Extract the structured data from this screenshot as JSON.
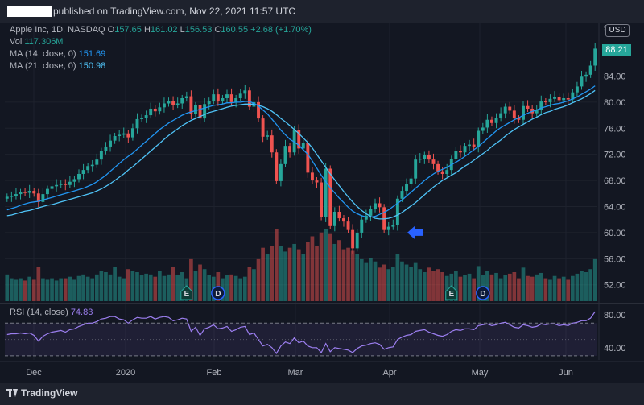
{
  "header": {
    "published_text": "published on TradingView.com, Nov 22, 2021 11:57 UTC"
  },
  "legend": {
    "symbol": "Apple Inc, 1D, NASDAQ",
    "open_label": "O",
    "open_value": "157.65",
    "high_label": "H",
    "high_value": "161.02",
    "low_label": "L",
    "low_value": "156.53",
    "close_label": "C",
    "close_value": "160.55",
    "change": "+2.68 (+1.70%)",
    "vol_label": "Vol",
    "vol_value": "117.306M",
    "ma14_label": "MA (14, close, 0)",
    "ma14_value": "151.69",
    "ma21_label": "MA (21, close, 0)",
    "ma21_value": "150.98",
    "rsi_label": "RSI (14, close)",
    "rsi_value": "74.83"
  },
  "price_axis": {
    "currency": "USD",
    "last_price_label": "88.21",
    "top_partial_label": "92"
  },
  "footer": {
    "brand": "TradingView"
  },
  "colors": {
    "up": "#26a69a",
    "down": "#ef5350",
    "ma14": "#2196f3",
    "ma21": "#4fc3f7",
    "rsi": "#9c7ff0",
    "arrow": "#2962ff"
  },
  "chart_data": [
    {
      "type": "candlestick",
      "title": "Apple Inc, 1D, NASDAQ",
      "y_ticks": [
        52,
        56,
        60,
        64,
        68,
        72,
        76,
        80,
        84
      ],
      "y_tick_labels": [
        "52.00",
        "56.00",
        "60.00",
        "64.00",
        "68.00",
        "72.00",
        "76.00",
        "80.00",
        "84.00"
      ],
      "ylim": [
        49.5,
        92.2
      ],
      "x_tick_labels": [
        "Dec",
        "2020",
        "Feb",
        "Mar",
        "Apr",
        "May",
        "Jun"
      ],
      "close": [
        65.5,
        65.6,
        65.9,
        66.2,
        66.1,
        66.4,
        66.0,
        64.7,
        65.9,
        66.7,
        67.1,
        67.3,
        67.5,
        67.3,
        67.8,
        68.2,
        69.0,
        69.6,
        70.2,
        70.4,
        71.2,
        72.5,
        73.2,
        74.1,
        74.8,
        75.0,
        75.2,
        74.6,
        76.0,
        77.4,
        77.6,
        78.0,
        79.0,
        78.6,
        79.2,
        79.8,
        80.2,
        79.6,
        79.8,
        80.6,
        80.9,
        78.2,
        79.5,
        77.5,
        79.7,
        80.2,
        81.2,
        80.2,
        80.6,
        81.2,
        80.0,
        80.6,
        81.3,
        81.8,
        79.3,
        80.0,
        77.5,
        74.7,
        74.9,
        72.3,
        67.9,
        70.5,
        73.3,
        72.3,
        75.7,
        72.9,
        73.7,
        69.2,
        68.0,
        67.7,
        62.4,
        69.8,
        61.0,
        63.2,
        62.2,
        61.7,
        60.4,
        57.6,
        60.0,
        62.0,
        62.6,
        63.6,
        64.5,
        63.9,
        60.4,
        60.9,
        61.1,
        65.2,
        66.4,
        67.4,
        68.3,
        71.2,
        71.3,
        71.9,
        71.2,
        70.5,
        69.4,
        69.0,
        69.6,
        71.3,
        72.5,
        72.3,
        73.3,
        73.5,
        73.1,
        75.6,
        76.1,
        77.3,
        76.8,
        77.6,
        78.3,
        79.3,
        78.7,
        77.5,
        77.3,
        79.4,
        79.0,
        78.3,
        78.8,
        80.1,
        80.0,
        80.5,
        80.8,
        80.3,
        80.6,
        80.4,
        81.5,
        82.4,
        83.9,
        84.2,
        85.6,
        88.2
      ],
      "ma14": [
        63.5,
        63.7,
        63.9,
        64.2,
        64.4,
        64.6,
        64.7,
        64.8,
        65.0,
        65.2,
        65.4,
        65.6,
        65.8,
        66.0,
        66.2,
        66.4,
        66.6,
        66.8,
        67.1,
        67.4,
        67.8,
        68.3,
        68.8,
        69.4,
        70.0,
        70.6,
        71.2,
        71.7,
        72.2,
        72.8,
        73.4,
        74.0,
        74.6,
        75.2,
        75.8,
        76.3,
        76.8,
        77.2,
        77.6,
        78.0,
        78.3,
        78.5,
        78.7,
        78.9,
        79.1,
        79.3,
        79.5,
        79.6,
        79.7,
        79.9,
        79.9,
        80.0,
        80.0,
        80.1,
        80.1,
        79.8,
        79.4,
        78.8,
        78.2,
        77.4,
        76.6,
        75.7,
        75.0,
        74.3,
        73.9,
        73.4,
        72.7,
        72.0,
        71.0,
        69.9,
        68.8,
        67.8,
        66.9,
        66.1,
        65.3,
        64.6,
        63.9,
        63.3,
        62.9,
        62.6,
        62.4,
        62.4,
        62.5,
        62.8,
        63.1,
        63.5,
        64.0,
        64.5,
        65.0,
        65.6,
        66.2,
        66.8,
        67.4,
        68.0,
        68.5,
        69.0,
        69.4,
        69.7,
        70.0,
        70.4,
        70.8,
        71.2,
        71.7,
        72.2,
        72.7,
        73.2,
        73.8,
        74.4,
        75.0,
        75.6,
        76.1,
        76.5,
        76.9,
        77.3,
        77.6,
        78.0,
        78.3,
        78.6,
        78.8,
        79.1,
        79.3,
        79.5,
        79.7,
        79.8,
        80.0,
        80.2,
        80.5,
        80.8,
        81.2,
        81.6,
        82.0,
        82.5
      ],
      "ma21": [
        62.6,
        62.7,
        62.9,
        63.1,
        63.3,
        63.4,
        63.6,
        63.8,
        64.0,
        64.2,
        64.3,
        64.5,
        64.7,
        64.9,
        65.1,
        65.3,
        65.5,
        65.7,
        65.9,
        66.1,
        66.4,
        66.7,
        67.1,
        67.5,
        68.0,
        68.5,
        69.0,
        69.6,
        70.1,
        70.7,
        71.3,
        71.9,
        72.5,
        73.1,
        73.7,
        74.3,
        74.9,
        75.4,
        75.9,
        76.4,
        76.8,
        77.2,
        77.5,
        77.8,
        78.1,
        78.4,
        78.6,
        78.8,
        79.0,
        79.2,
        79.4,
        79.5,
        79.6,
        79.7,
        79.7,
        79.7,
        79.5,
        79.3,
        79.0,
        78.6,
        78.1,
        77.5,
        77.0,
        76.4,
        75.8,
        75.2,
        74.5,
        73.8,
        73.0,
        72.0,
        71.0,
        70.0,
        69.0,
        68.1,
        67.2,
        66.3,
        65.5,
        64.7,
        64.0,
        63.4,
        62.9,
        62.5,
        62.2,
        62.1,
        62.1,
        62.2,
        62.4,
        62.7,
        63.1,
        63.6,
        64.1,
        64.6,
        65.2,
        65.8,
        66.4,
        67.0,
        67.5,
        68.0,
        68.4,
        68.8,
        69.2,
        69.7,
        70.2,
        70.6,
        71.1,
        71.6,
        72.1,
        72.6,
        73.2,
        73.7,
        74.2,
        74.8,
        75.3,
        75.8,
        76.2,
        76.6,
        77.0,
        77.4,
        77.7,
        78.1,
        78.4,
        78.6,
        78.9,
        79.1,
        79.3,
        79.6,
        79.9,
        80.2,
        80.5,
        80.9,
        81.3,
        81.8
      ],
      "volume_relative": [
        0.35,
        0.3,
        0.28,
        0.3,
        0.27,
        0.32,
        0.28,
        0.45,
        0.3,
        0.28,
        0.3,
        0.27,
        0.3,
        0.3,
        0.32,
        0.28,
        0.33,
        0.35,
        0.32,
        0.3,
        0.35,
        0.4,
        0.38,
        0.35,
        0.45,
        0.32,
        0.3,
        0.42,
        0.4,
        0.38,
        0.34,
        0.36,
        0.35,
        0.32,
        0.4,
        0.33,
        0.35,
        0.45,
        0.34,
        0.38,
        0.3,
        0.55,
        0.4,
        0.48,
        0.42,
        0.34,
        0.32,
        0.38,
        0.3,
        0.34,
        0.35,
        0.33,
        0.3,
        0.32,
        0.45,
        0.42,
        0.55,
        0.7,
        0.62,
        0.72,
        0.95,
        0.72,
        0.65,
        0.7,
        0.75,
        0.68,
        0.62,
        0.78,
        0.85,
        0.72,
        0.9,
        0.95,
        0.88,
        0.75,
        0.8,
        0.68,
        0.7,
        0.66,
        0.62,
        0.55,
        0.5,
        0.56,
        0.52,
        0.44,
        0.48,
        0.42,
        0.45,
        0.62,
        0.52,
        0.48,
        0.45,
        0.5,
        0.42,
        0.38,
        0.44,
        0.4,
        0.42,
        0.38,
        0.33,
        0.36,
        0.4,
        0.32,
        0.34,
        0.36,
        0.3,
        0.46,
        0.34,
        0.4,
        0.35,
        0.37,
        0.3,
        0.34,
        0.36,
        0.38,
        0.3,
        0.44,
        0.33,
        0.32,
        0.35,
        0.37,
        0.3,
        0.28,
        0.33,
        0.3,
        0.32,
        0.28,
        0.33,
        0.36,
        0.4,
        0.38,
        0.42,
        0.55
      ],
      "rsi": [
        56,
        57,
        57,
        58,
        57,
        58,
        55,
        48,
        54,
        57,
        59,
        60,
        61,
        59,
        62,
        63,
        66,
        68,
        70,
        70,
        72,
        75,
        76,
        78,
        78,
        75,
        74,
        70,
        74,
        77,
        76,
        76,
        78,
        75,
        77,
        78,
        77,
        73,
        74,
        76,
        75,
        60,
        65,
        55,
        63,
        65,
        68,
        63,
        64,
        66,
        60,
        62,
        65,
        66,
        56,
        58,
        50,
        42,
        44,
        40,
        33,
        42,
        47,
        45,
        52,
        46,
        48,
        42,
        40,
        40,
        34,
        45,
        35,
        40,
        39,
        38,
        37,
        34,
        39,
        42,
        43,
        45,
        46,
        44,
        38,
        40,
        41,
        50,
        53,
        55,
        56,
        60,
        61,
        62,
        59,
        57,
        55,
        54,
        56,
        60,
        62,
        61,
        63,
        63,
        62,
        67,
        68,
        69,
        67,
        68,
        70,
        71,
        68,
        65,
        64,
        68,
        67,
        65,
        66,
        69,
        68,
        69,
        69,
        67,
        68,
        67,
        70,
        71,
        73,
        73,
        76,
        84
      ],
      "rsi_levels": [
        30,
        70
      ],
      "rsi_y_ticks": [
        "80.00",
        "40.00"
      ],
      "rsi_ylim": [
        25,
        90
      ],
      "event_markers": [
        {
          "label": "E",
          "type": "earnings"
        },
        {
          "label": "D",
          "type": "dividend"
        },
        {
          "label": "E",
          "type": "earnings"
        },
        {
          "label": "D",
          "type": "dividend"
        }
      ],
      "annotation": {
        "type": "arrow",
        "direction": "left",
        "at_price": 60.0
      }
    }
  ]
}
